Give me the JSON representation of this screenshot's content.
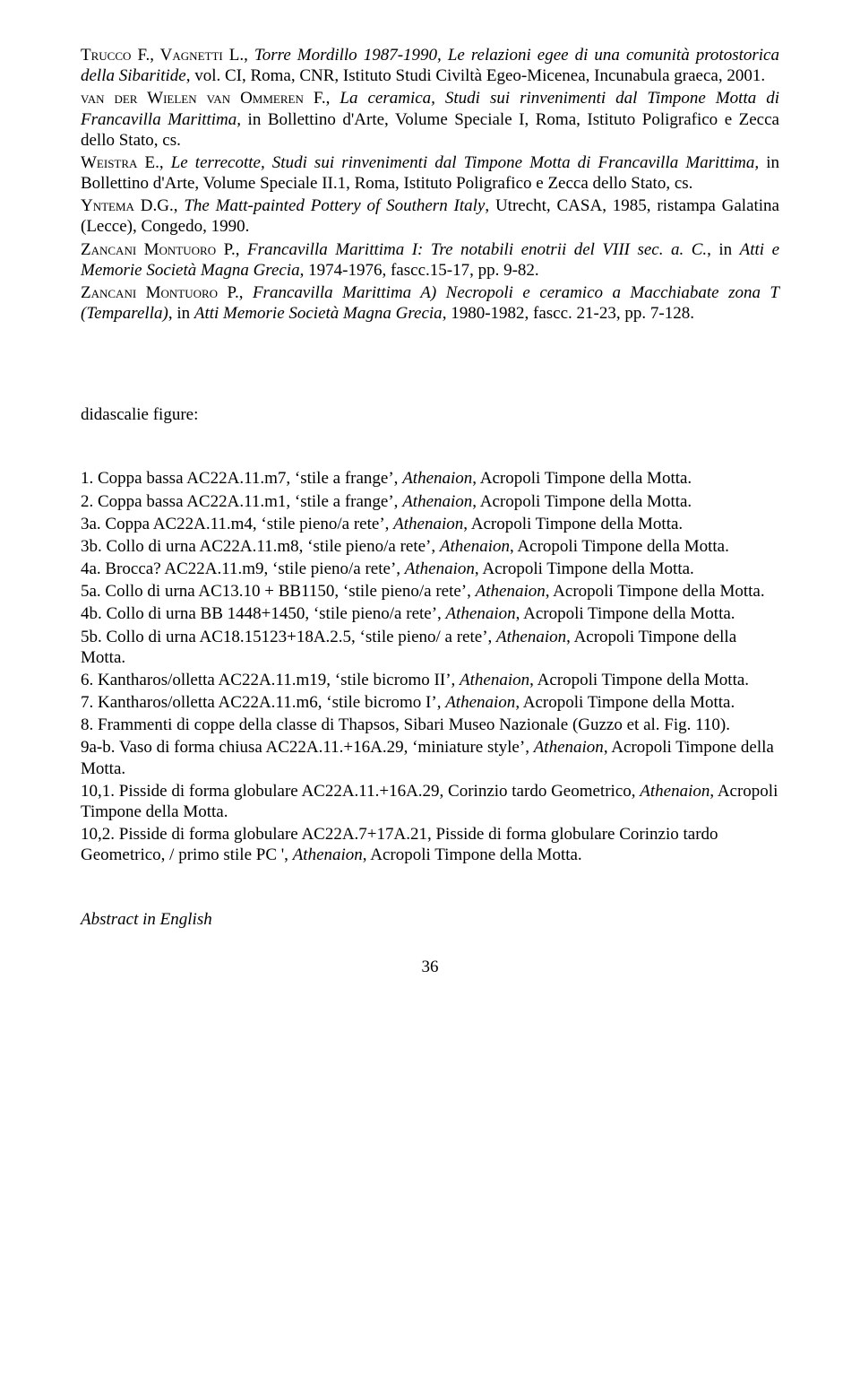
{
  "refs": {
    "r1_authors": "Trucco F., Vagnetti L.",
    "r1_title": "Torre Mordillo 1987-1990, Le relazioni egee di una comunità protostorica della Sibaritide",
    "r1_tail": ", vol. CI, Roma, CNR, Istituto Studi Civiltà Egeo-Micenea, Incunabula graeca, 2001.",
    "r2_authors": "van der Wielen van Ommeren F.",
    "r2_title": "La ceramica, Studi sui rinvenimenti dal Timpone Motta di Francavilla Marittima,",
    "r2_mid": " in Bollettino d'Arte, ",
    "r2_tail": "Volume Speciale I, Roma, Istituto Poligrafico e Zecca dello Stato, cs.",
    "r3_authors": "Weistra E.",
    "r3_title": "Le terrecotte, Studi sui rinvenimenti dal Timpone Motta di Francavilla Marittima,",
    "r3_mid": " in Bollettino d'Arte, ",
    "r3_tail": "Volume Speciale II.1, Roma, Istituto Poligrafico e Zecca dello Stato, cs.",
    "r4_authors": "Yntema D.G.",
    "r4_title": "The Matt-painted Pottery of Southern Italy",
    "r4_tail": ", Utrecht, CASA, 1985, ristampa Galatina (Lecce), Congedo, 1990.",
    "r5_authors": "Zancani Montuoro P.",
    "r5_title": "Francavilla Marittima I: Tre notabili enotrii del VIII sec. a. C.",
    "r5_mid": ", in ",
    "r5_journal": "Atti e Memorie Società Magna Grecia",
    "r5_tail": ", 1974-1976, fascc.15-17, pp. 9-82.",
    "r6_authors": "Zancani Montuoro P.",
    "r6_title": "Francavilla Marittima A) Necropoli e ceramico a Macchiabate zona T (Temparella)",
    "r6_mid": ", in ",
    "r6_journal": "Atti Memorie Società Magna Grecia",
    "r6_tail": ", 1980-1982, fascc. 21-23, pp. 7-128."
  },
  "section_label": "didascalie figure:",
  "figs": {
    "f1": "1.  Coppa bassa AC22A.11.m7, 'stile a frange', Athenaion, Acropoli Timpone della Motta.",
    "f2": "2.  Coppa bassa AC22A.11.m1, 'stile a frange', Athenaion, Acropoli Timpone della Motta.",
    "f3a": "3a. Coppa AC22A.11.m4, 'stile pieno/a rete', Athenaion, Acropoli Timpone della Motta.",
    "f3b": "3b. Collo di urna AC22A.11.m8, 'stile pieno/a rete', Athenaion, Acropoli Timpone della Motta.",
    "f4a": "4a. Brocca? AC22A.11.m9, 'stile pieno/a rete', Athenaion, Acropoli Timpone della Motta.",
    "f5a": "5a. Collo di urna AC13.10 + BB1150, 'stile pieno/a rete', Athenaion, Acropoli Timpone della Motta.",
    "f4b": "4b. Collo di urna BB 1448+1450, 'stile pieno/a rete', Athenaion, Acropoli Timpone della Motta.",
    "f5b": "5b. Collo di urna AC18.15123+18A.2.5, 'stile pieno/ a rete', Athenaion, Acropoli Timpone della Motta.",
    "f6": "6.  Kantharos/olletta AC22A.11.m19, 'stile bicromo II', Athenaion, Acropoli Timpone della Motta.",
    "f7": "7.  Kantharos/olletta AC22A.11.m6, 'stile bicromo I', Athenaion, Acropoli Timpone della Motta.",
    "f8": "8.  Frammenti di coppe della classe di Thapsos,  Sibari Museo Nazionale (Guzzo et al. Fig. 110).",
    "f9ab": "9a-b. Vaso di forma chiusa AC22A.11.+16A.29, 'miniature style', Athenaion, Acropoli Timpone della Motta.",
    "f101": "10,1. Pisside di forma globulare AC22A.11.+16A.29, Corinzio tardo Geometrico, Athenaion, Acropoli Timpone della Motta.",
    "f102": "10,2. Pisside di forma globulare AC22A.7+17A.21, Pisside di forma globulare Corinzio tardo Geometrico, / primo stile PC ', Athenaion, Acropoli Timpone della Motta."
  },
  "abstract_label": "Abstract in English",
  "page_number": "36"
}
